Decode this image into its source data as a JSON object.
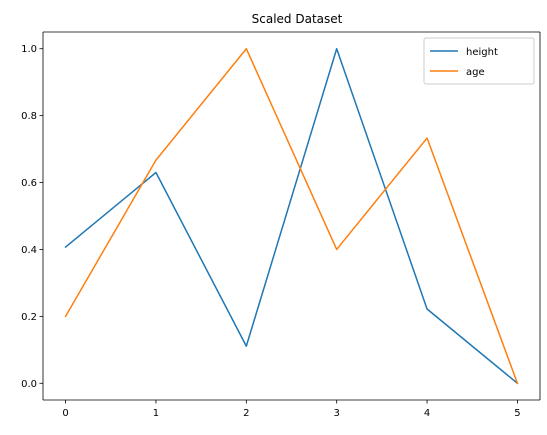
{
  "chart_data": {
    "type": "line",
    "title": "Scaled Dataset",
    "xlabel": "",
    "ylabel": "",
    "x": [
      0,
      1,
      2,
      3,
      4,
      5
    ],
    "xlim": [
      -0.25,
      5.25
    ],
    "ylim": [
      -0.05,
      1.05
    ],
    "xticks": [
      0,
      1,
      2,
      3,
      4,
      5
    ],
    "yticks": [
      0.0,
      0.2,
      0.4,
      0.6,
      0.8,
      1.0
    ],
    "xtick_labels": [
      "0",
      "1",
      "2",
      "3",
      "4",
      "5"
    ],
    "ytick_labels": [
      "0.0",
      "0.2",
      "0.4",
      "0.6",
      "0.8",
      "1.0"
    ],
    "grid": false,
    "legend_position": "top-right",
    "series": [
      {
        "name": "height",
        "color": "#1f77b4",
        "values": [
          0.407,
          0.63,
          0.111,
          1.0,
          0.222,
          0.0
        ]
      },
      {
        "name": "age",
        "color": "#ff7f0e",
        "values": [
          0.2,
          0.667,
          1.0,
          0.4,
          0.733,
          0.0
        ]
      }
    ]
  }
}
